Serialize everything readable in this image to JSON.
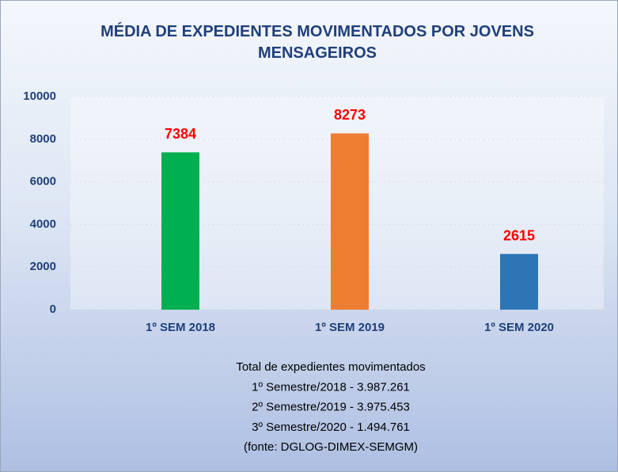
{
  "chart_data": {
    "type": "bar",
    "title": "MÉDIA DE EXPEDIENTES MOVIMENTADOS POR JOVENS MENSAGEIROS",
    "categories": [
      "1º SEM 2018",
      "1º SEM 2019",
      "1º SEM 2020"
    ],
    "values": [
      7384,
      8273,
      2615
    ],
    "colors": [
      "#00b050",
      "#ed7d31",
      "#2e75b6"
    ],
    "ylim": [
      0,
      10000
    ],
    "yticks": [
      0,
      2000,
      4000,
      6000,
      8000,
      10000
    ],
    "grid": true,
    "annotations": [
      "Total de expedientes movimentados",
      "1º Semestre/2018 - 3.987.261",
      "2º Semestre/2019 - 3.975.453",
      "3º Semestre/2020 - 1.494.761",
      "(fonte: DGLOG-DIMEX-SEMGM)"
    ]
  }
}
